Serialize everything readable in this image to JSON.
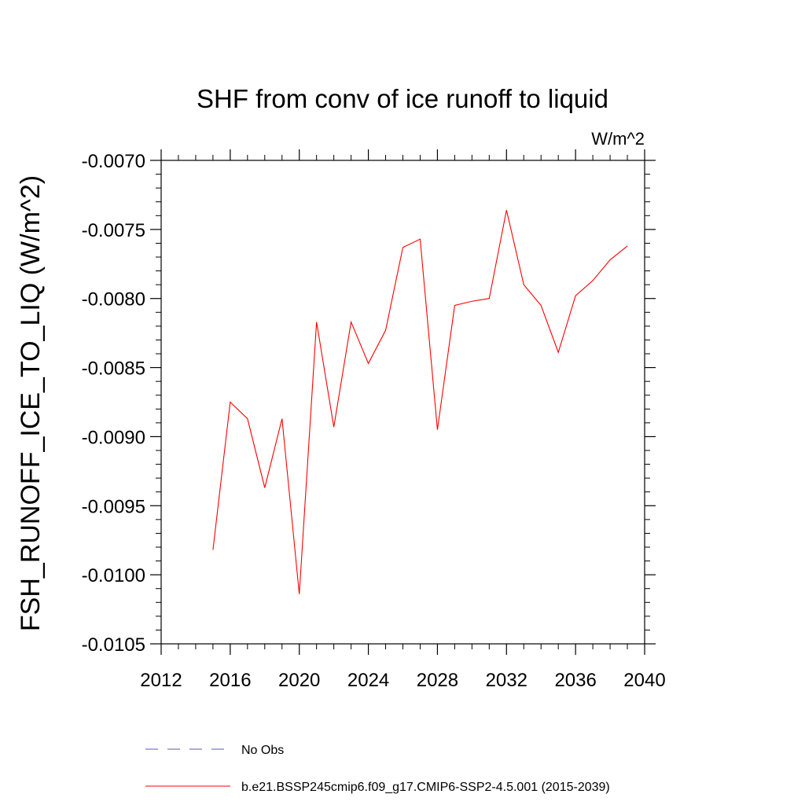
{
  "chart_data": {
    "type": "line",
    "title": "SHF from conv of ice runoff to liquid",
    "units_label": "W/m^2",
    "ylabel": "FSH_RUNOFF_ICE_TO_LIQ  (W/m^2)",
    "xlabel": "",
    "xlim": [
      2012,
      2040
    ],
    "ylim": [
      -0.0105,
      -0.007
    ],
    "x_ticks": [
      2012,
      2016,
      2020,
      2024,
      2028,
      2032,
      2036,
      2040
    ],
    "x_tick_labels": [
      "2012",
      "2016",
      "2020",
      "2024",
      "2028",
      "2032",
      "2036",
      "2040"
    ],
    "y_ticks": [
      -0.007,
      -0.0075,
      -0.008,
      -0.0085,
      -0.009,
      -0.0095,
      -0.01,
      -0.0105
    ],
    "y_tick_labels": [
      "-0.0070",
      "-0.0075",
      "-0.0080",
      "-0.0085",
      "-0.0090",
      "-0.0095",
      "-0.0100",
      "-0.0105"
    ],
    "series": [
      {
        "name": "b.e21.BSSP245cmip6.f09_g17.CMIP6-SSP2-4.5.001 (2015-2039)",
        "color": "#ff0000",
        "style": "solid",
        "x": [
          2015,
          2016,
          2017,
          2018,
          2019,
          2020,
          2021,
          2022,
          2023,
          2024,
          2025,
          2026,
          2027,
          2028,
          2029,
          2030,
          2031,
          2032,
          2033,
          2034,
          2035,
          2036,
          2037,
          2038,
          2039
        ],
        "values": [
          -0.00982,
          -0.00875,
          -0.00887,
          -0.00937,
          -0.00887,
          -0.01014,
          -0.00817,
          -0.00893,
          -0.00817,
          -0.00847,
          -0.00823,
          -0.00763,
          -0.00757,
          -0.00895,
          -0.00805,
          -0.00802,
          -0.008,
          -0.00736,
          -0.0079,
          -0.00805,
          -0.00839,
          -0.00798,
          -0.00787,
          -0.00772,
          -0.00762
        ]
      }
    ],
    "legend": [
      {
        "label": "No Obs",
        "color": "#5a5ab4",
        "style": "dashed"
      },
      {
        "label": "b.e21.BSSP245cmip6.f09_g17.CMIP6-SSP2-4.5.001 (2015-2039)",
        "color": "#ff0000",
        "style": "solid"
      }
    ],
    "legend_position": "bottom"
  }
}
